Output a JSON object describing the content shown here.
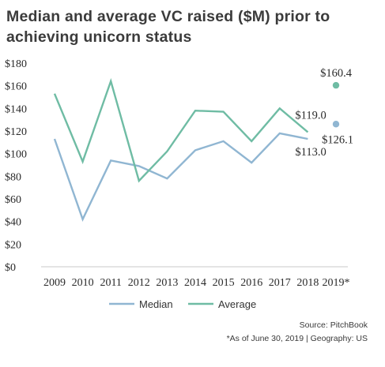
{
  "title": "Median and average VC raised ($M) prior to achieving unicorn status",
  "source": "Source: PitchBook",
  "footnote": "*As of June 30, 2019 | Geography: US",
  "colors": {
    "median": "#90b6d2",
    "average": "#6fbca4"
  },
  "chart_data": {
    "type": "line",
    "title": "Median and average VC raised ($M) prior to achieving unicorn status",
    "categories": [
      "2009",
      "2010",
      "2011",
      "2012",
      "2013",
      "2014",
      "2015",
      "2016",
      "2017",
      "2018",
      "2019*"
    ],
    "series": [
      {
        "name": "Median",
        "values": [
          113,
          42,
          94,
          89,
          78,
          103,
          111,
          92,
          118,
          113.0,
          126.1
        ],
        "line_ends_at_index": 9,
        "separate_point_index": 10
      },
      {
        "name": "Average",
        "values": [
          153,
          93,
          164,
          76,
          102,
          138,
          137,
          111,
          140,
          119.0,
          160.4
        ],
        "line_ends_at_index": 9,
        "separate_point_index": 10
      }
    ],
    "data_labels": [
      {
        "series": "Average",
        "index": 10,
        "text": "$160.4"
      },
      {
        "series": "Average",
        "index": 9,
        "text": "$119.0"
      },
      {
        "series": "Median",
        "index": 10,
        "text": "$126.1"
      },
      {
        "series": "Median",
        "index": 9,
        "text": "$113.0"
      }
    ],
    "y_ticks": [
      "$0",
      "$20",
      "$40",
      "$60",
      "$80",
      "$100",
      "$120",
      "$140",
      "$160",
      "$180"
    ],
    "ylim": [
      0,
      180
    ],
    "xlabel": "",
    "ylabel": "",
    "grid": false,
    "legend": "bottom-center"
  }
}
